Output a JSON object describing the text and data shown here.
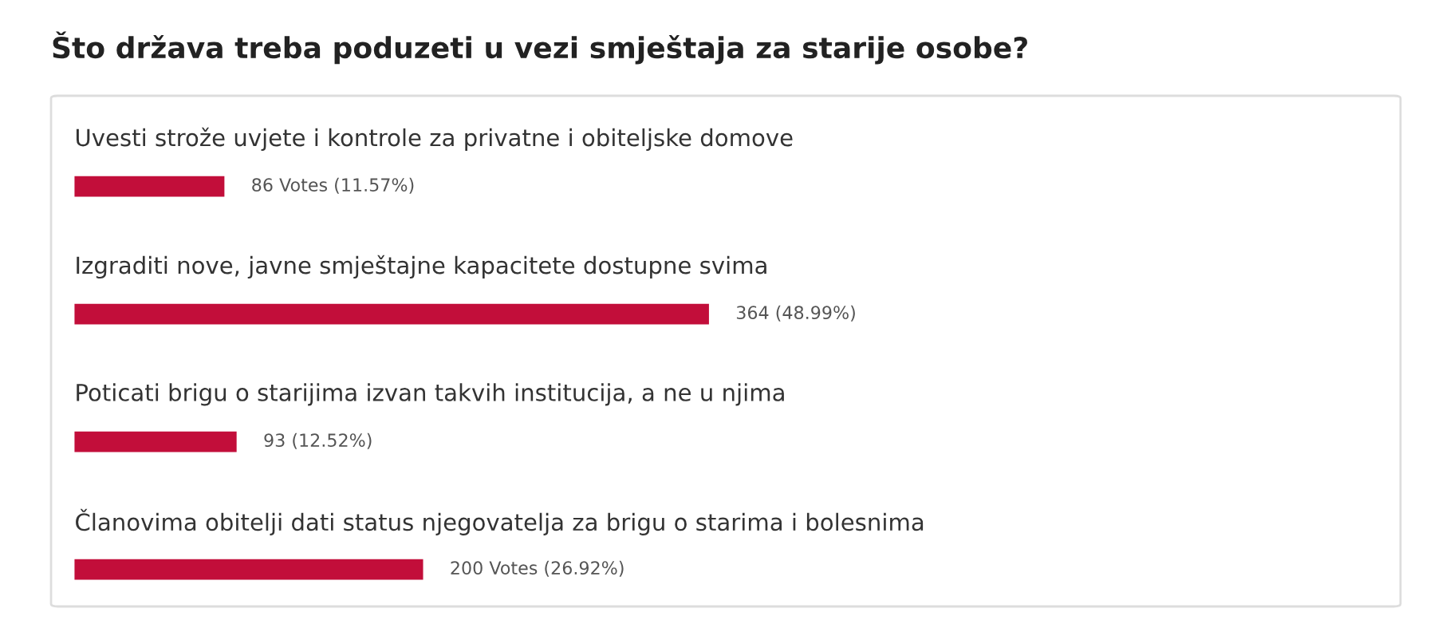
{
  "chart_data": {
    "type": "bar",
    "orientation": "horizontal",
    "title": "Što država treba poduzeti u vezi smještaja za starije osobe?",
    "categories": [
      "Uvesti strože uvjete i kontrole za privatne i obiteljske domove",
      "Izgraditi nove, javne smještajne kapacitete dostupne svima",
      "Poticati brigu o starijima izvan takvih institucija, a ne u njima",
      "Članovima obitelji dati status njegovatelja za brigu o starima i bolesnima"
    ],
    "values": [
      86,
      364,
      93,
      200
    ],
    "value_labels": [
      "86 Votes (11.57%)",
      "364 (48.99%)",
      "93 (12.52%)",
      "200 Votes (26.92%)"
    ],
    "color": "#c20e3a"
  }
}
